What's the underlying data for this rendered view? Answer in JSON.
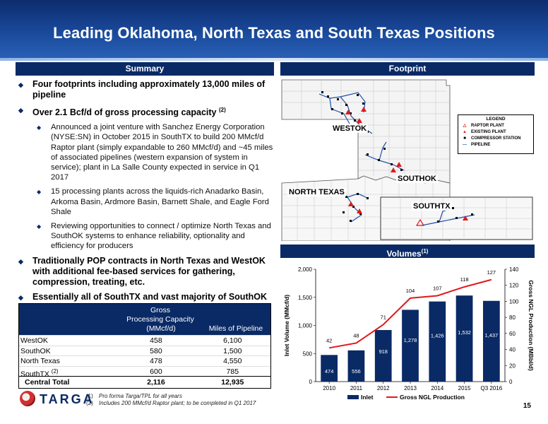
{
  "title": "Leading Oklahoma, North Texas and South Texas Positions",
  "sections": {
    "summary": "Summary",
    "footprint": "Footprint",
    "volumes": "Volumes",
    "volumes_note": "(1)"
  },
  "bullets": {
    "b1": "Four footprints including approximately 13,000 miles of pipeline",
    "b2": "Over 2.1 Bcf/d of gross processing capacity",
    "b2_note": "(2)",
    "b2a": "Announced a joint venture with Sanchez Energy Corporation (NYSE:SN) in October 2015 in SouthTX to build 200 MMcf/d Raptor plant (simply expandable to 260 MMcf/d) and ~45 miles of associated pipelines (western expansion of system in service); plant in La Salle County expected in service in Q1 2017",
    "b2b": "15 processing plants across the liquids-rich Anadarko Basin, Arkoma Basin, Ardmore Basin, Barnett Shale, and Eagle Ford Shale",
    "b2c": "Reviewing opportunities to connect / optimize North Texas and SouthOK systems to enhance reliability, optionality and efficiency for producers",
    "b3": "Traditionally POP contracts in North Texas and WestOK with additional fee-based services for gathering, compression, treating, etc.",
    "b4": "Essentially all of SouthTX and vast majority of SouthOK contracts are fee-based"
  },
  "table": {
    "header_line1": "Gross",
    "header_line2": "Processing Capacity",
    "col_capacity": "(MMcf/d)",
    "col_miles": "Miles of Pipeline",
    "rows": [
      {
        "name": "WestOK",
        "note": "",
        "capacity": "458",
        "miles": "6,100"
      },
      {
        "name": "SouthOK",
        "note": "",
        "capacity": "580",
        "miles": "1,500"
      },
      {
        "name": "North Texas",
        "note": "",
        "capacity": "478",
        "miles": "4,550"
      },
      {
        "name": "SouthTX",
        "note": "(2)",
        "capacity": "600",
        "miles": "785"
      }
    ],
    "total": {
      "name": "Central Total",
      "capacity": "2,116",
      "miles": "12,935"
    }
  },
  "footnotes": {
    "n1": "(1)",
    "f1": "Pro forma Targa/TPL for all years",
    "n2": "(2)",
    "f2": "Includes 200 MMcf/d Raptor plant; to be completed in Q1 2017"
  },
  "logo_text": "TARGA",
  "page_number": "15",
  "map": {
    "labels": {
      "westok": "WESTOK",
      "southok": "SOUTHOK",
      "north_texas": "NORTH TEXAS",
      "southtx": "SOUTHTX"
    },
    "legend": {
      "title": "LEGEND",
      "items": [
        {
          "label": "RAPTOR PLANT",
          "icon": "hollow-triangle-icon"
        },
        {
          "label": "EXISTING PLANT",
          "icon": "red-triangle-icon"
        },
        {
          "label": "COMPRESSOR STATION",
          "icon": "black-square-icon"
        },
        {
          "label": "PIPELINE",
          "icon": "blue-line-icon"
        }
      ]
    }
  },
  "chart_data": {
    "type": "bar",
    "categories": [
      "2010",
      "2011",
      "2012",
      "2013",
      "2014",
      "2015",
      "Q3 2016"
    ],
    "series": [
      {
        "name": "Inlet",
        "type": "bar",
        "axis": "left",
        "values": [
          474,
          556,
          918,
          1278,
          1426,
          1532,
          1437
        ],
        "labels": [
          "474",
          "556",
          "918",
          "1,278",
          "1,426",
          "1,532",
          "1,437"
        ]
      },
      {
        "name": "Gross NGL Production",
        "type": "line",
        "axis": "right",
        "values": [
          42,
          48,
          71,
          104,
          107,
          118,
          127
        ],
        "labels": [
          "42",
          "48",
          "71",
          "104",
          "107",
          "118",
          "127"
        ]
      }
    ],
    "ylabel": "Inlet Volume (MMcf/d)",
    "y2label": "Gross NGL Production (MBbl/d)",
    "ylim": [
      0,
      2000
    ],
    "y2lim": [
      0,
      140
    ],
    "yticks": [
      "0",
      "500",
      "1,000",
      "1,500",
      "2,000"
    ],
    "y2ticks": [
      "0",
      "20",
      "40",
      "60",
      "80",
      "100",
      "120",
      "140"
    ],
    "grid": false,
    "legend_position": "bottom",
    "colors": {
      "bar": "#0a2a66",
      "line": "#e0191b"
    }
  }
}
